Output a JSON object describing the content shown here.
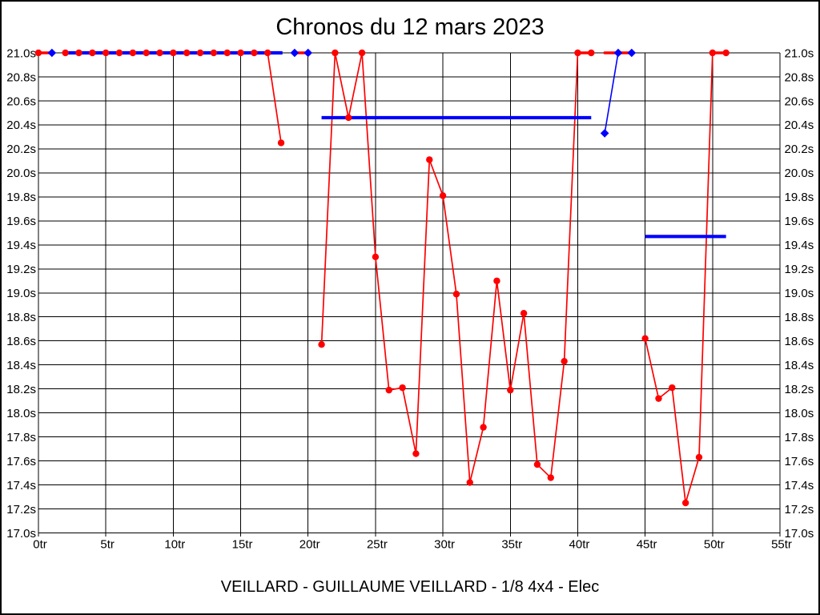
{
  "title": "Chronos du 12 mars 2023",
  "footer": "VEILLARD - GUILLAUME VEILLARD - 1/8 4x4 - Elec",
  "colors": {
    "laps": "#ff0000",
    "overlay": "#0000ff",
    "grid": "#000000",
    "background": "#ffffff"
  },
  "chart_data": {
    "type": "line",
    "title": "Chronos du 12 mars 2023",
    "x_axis": {
      "unit": "tr",
      "min": 0,
      "max": 55,
      "tick_step": 5,
      "tick_labels": [
        "0tr",
        "5tr",
        "10tr",
        "15tr",
        "20tr",
        "25tr",
        "30tr",
        "35tr",
        "40tr",
        "45tr",
        "50tr",
        "55tr"
      ]
    },
    "y_axis": {
      "unit": "s",
      "min": 17.0,
      "max": 21.0,
      "tick_step": 0.2,
      "clip_max": 21.0,
      "tick_labels": [
        "21.0s",
        "20.8s",
        "20.6s",
        "20.4s",
        "20.2s",
        "20.0s",
        "19.8s",
        "19.6s",
        "19.4s",
        "19.2s",
        "19.0s",
        "18.8s",
        "18.6s",
        "18.4s",
        "18.2s",
        "18.0s",
        "17.8s",
        "17.6s",
        "17.4s",
        "17.2s",
        "17.0s"
      ]
    },
    "lap_times": {
      "color": "#ff0000",
      "runs": [
        {
          "from_lap": 0,
          "times": [
            21.0,
            21.0
          ]
        },
        {
          "from_lap": 2,
          "times": [
            21.0,
            21.0,
            21.0,
            21.0,
            21.0,
            21.0,
            21.0,
            21.0,
            21.0,
            21.0,
            21.0,
            21.0,
            21.0,
            21.0,
            21.0,
            21.0,
            20.25
          ]
        },
        {
          "from_lap": 19,
          "times": [
            21.0,
            21.0
          ]
        },
        {
          "from_lap": 21,
          "times": [
            18.57,
            21.0,
            20.46,
            21.0,
            19.3,
            18.19,
            18.21,
            17.66,
            20.11,
            19.81,
            18.99,
            17.42,
            17.88,
            19.1,
            18.19,
            18.83,
            17.57,
            17.46,
            18.43,
            21.0,
            21.0
          ]
        },
        {
          "from_lap": 42,
          "times": [
            21.0,
            21.0,
            21.0
          ]
        },
        {
          "from_lap": 45,
          "times": [
            18.62,
            18.12,
            18.21,
            17.25,
            17.63,
            21.0,
            21.0
          ]
        }
      ],
      "marker_suppressed_laps": [
        1,
        19,
        20,
        42,
        43,
        44
      ]
    },
    "blue_overlay": {
      "color": "#0000ff",
      "average_lines": [
        {
          "from_lap": 2.0,
          "to_lap": 18.1,
          "time": 21.0
        },
        {
          "from_lap": 21.0,
          "to_lap": 41.0,
          "time": 20.46
        },
        {
          "from_lap": 45.0,
          "to_lap": 51.0,
          "time": 19.47
        }
      ],
      "connector_lines": [
        {
          "from": [
            42,
            20.33
          ],
          "to": [
            43,
            21.0
          ]
        }
      ],
      "diamonds": [
        [
          1,
          21.0
        ],
        [
          19,
          21.0
        ],
        [
          20,
          21.0
        ],
        [
          42,
          20.33
        ],
        [
          43,
          21.0
        ],
        [
          44,
          21.0
        ]
      ]
    }
  }
}
